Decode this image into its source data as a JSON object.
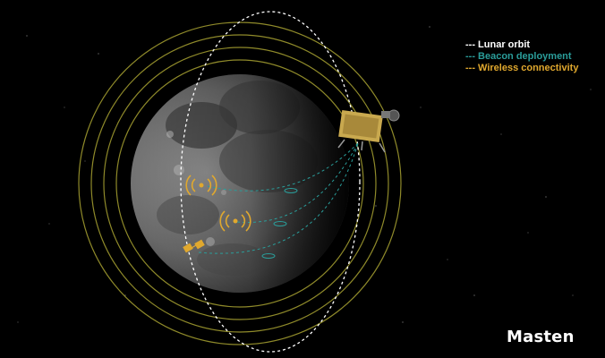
{
  "legend": {
    "items": [
      {
        "label": "--- Lunar orbit",
        "color": "#ffffff"
      },
      {
        "label": "--- Beacon deployment",
        "color": "#2a9d9a"
      },
      {
        "label": "--- Wireless connectivity",
        "color": "#e0a82e"
      }
    ]
  },
  "logo": {
    "text": "Masten"
  },
  "colors": {
    "background": "#000000",
    "orbit": "#ffffff",
    "beacon_path": "#2a9d9a",
    "connectivity_rings": "#8f8a2a",
    "beacon_signal": "#e0a82e",
    "lander": "#c9a94f"
  },
  "icons": [
    "moon-image",
    "lander-spacecraft-icon",
    "wifi-beacon-icon",
    "satellite-beacon-icon",
    "masten-logo"
  ]
}
